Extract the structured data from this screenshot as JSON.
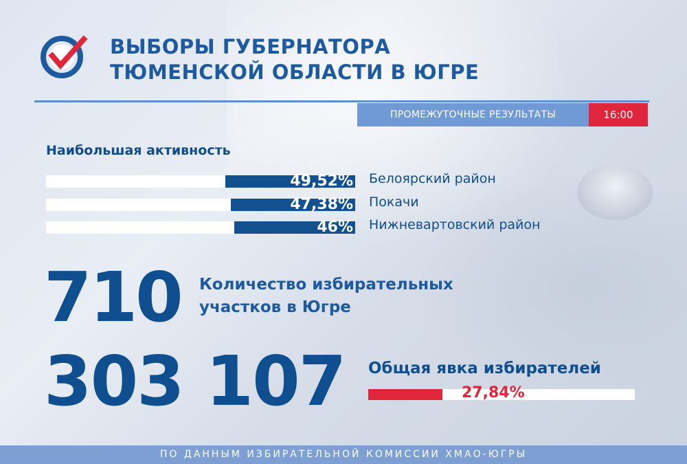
{
  "header": {
    "title_line1": "ВЫБОРЫ ГУБЕРНАТОРА",
    "title_line2": "ТЮМЕНСКОЙ ОБЛАСТИ В ЮГРЕ",
    "logo_icon": "checkmark-circle-icon"
  },
  "status": {
    "label": "ПРОМЕЖУТОЧНЫЕ РЕЗУЛЬТАТЫ",
    "time": "16:00"
  },
  "activity": {
    "title": "Наибольшая активность",
    "items": [
      {
        "value_label": "49,52%",
        "value": 49.52,
        "district": "Белоярский район"
      },
      {
        "value_label": "47,38%",
        "value": 47.38,
        "district": "Покачи"
      },
      {
        "value_label": "46%",
        "value": 46,
        "district": "Нижневартовский район"
      }
    ]
  },
  "stations": {
    "count": "710",
    "label_line1": "Количество избирательных",
    "label_line2": "участков в Югре"
  },
  "turnout": {
    "count": "303 107",
    "label": "Общая явка избирателей",
    "percent_label": "27,84%",
    "percent": 27.84
  },
  "footer": {
    "source": "ПО ДАННЫМ ИЗБИРАТЕЛЬНОЙ КОМИССИИ ХМАО-ЮГРЫ"
  },
  "colors": {
    "primary_blue": "#0f4f90",
    "accent_red": "#e0263d",
    "light_blue": "#6f9ad6"
  }
}
